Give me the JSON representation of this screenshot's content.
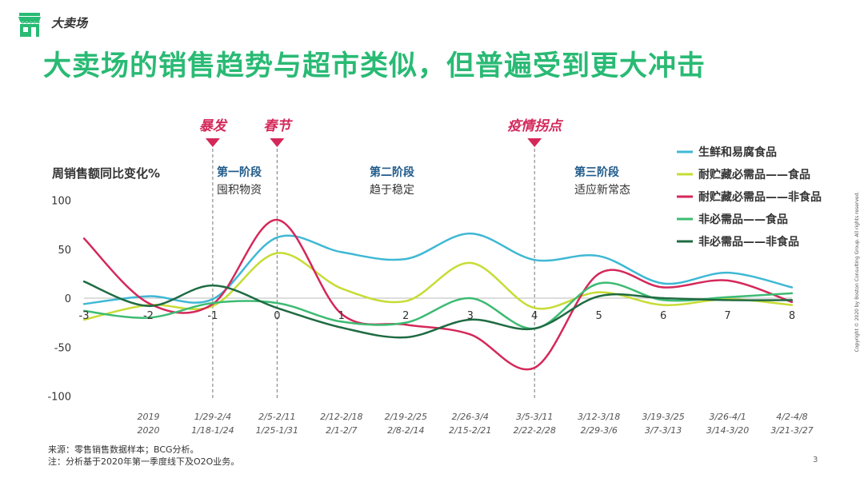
{
  "header": {
    "section_label": "大卖场",
    "title": "大卖场的销售趋势与超市类似，但普遍受到更大冲击"
  },
  "events": [
    {
      "label": "暴发",
      "x": -1
    },
    {
      "label": "春节",
      "x": 0
    },
    {
      "label": "疫情拐点",
      "x": 4
    }
  ],
  "phases": [
    {
      "name": "第一阶段",
      "desc": "囤积物资"
    },
    {
      "name": "第二阶段",
      "desc": "趋于稳定"
    },
    {
      "name": "第三阶段",
      "desc": "适应新常态"
    }
  ],
  "chart_data": {
    "type": "line",
    "ylabel": "周销售额同比变化%",
    "ylim": [
      -100,
      100
    ],
    "yticks": [
      100,
      50,
      0,
      -50,
      -100
    ],
    "x": [
      -3,
      -2,
      -1,
      0,
      1,
      2,
      3,
      4,
      5,
      6,
      7,
      8
    ],
    "xtick_labels": [
      "-3",
      "-2",
      "-1",
      "0",
      "1",
      "2",
      "3",
      "4",
      "5",
      "6",
      "7",
      "8"
    ],
    "date_labels": [
      {
        "y2019": "2019",
        "y2020": "2020"
      },
      {
        "y2019": "1/29-2/4",
        "y2020": "1/18-1/24"
      },
      {
        "y2019": "2/5-2/11",
        "y2020": "1/25-1/31"
      },
      {
        "y2019": "2/12-2/18",
        "y2020": "2/1-2/7"
      },
      {
        "y2019": "2/19-2/25",
        "y2020": "2/8-2/14"
      },
      {
        "y2019": "2/26-3/4",
        "y2020": "2/15-2/21"
      },
      {
        "y2019": "3/5-3/11",
        "y2020": "2/22-2/28"
      },
      {
        "y2019": "3/12-3/18",
        "y2020": "2/29-3/6"
      },
      {
        "y2019": "3/19-3/25",
        "y2020": "3/7-3/13"
      },
      {
        "y2019": "3/26-4/1",
        "y2020": "3/14-3/20"
      },
      {
        "y2019": "4/2-4/8",
        "y2020": "3/21-3/27"
      }
    ],
    "legend_position": "top-right",
    "series": [
      {
        "name": "生鲜和易腐食品",
        "color": "#3fb8d4",
        "values": [
          -6,
          2,
          -1,
          62,
          47,
          40,
          66,
          39,
          43,
          15,
          26,
          11
        ]
      },
      {
        "name": "耐贮藏必需品——食品",
        "color": "#c7dc35",
        "values": [
          -22,
          -7,
          -8,
          46,
          10,
          -3,
          36,
          -10,
          6,
          -7,
          -1,
          -7
        ]
      },
      {
        "name": "耐贮藏必需品——非食品",
        "color": "#d4285a",
        "values": [
          61,
          -5,
          -6,
          80,
          -16,
          -27,
          -37,
          -71,
          25,
          11,
          18,
          -4
        ]
      },
      {
        "name": "非必需品——食品",
        "color": "#3dbb73",
        "values": [
          -13,
          -20,
          -5,
          -5,
          -24,
          -25,
          0,
          -31,
          15,
          -2,
          1,
          5
        ]
      },
      {
        "name": "非必需品——非食品",
        "color": "#1f6b42",
        "values": [
          17,
          -8,
          13,
          -10,
          -30,
          -40,
          -22,
          -31,
          2,
          0,
          -2,
          -2
        ]
      }
    ]
  },
  "footnotes": {
    "source": "来源：零售销售数据样本；BCG分析。",
    "note": "注：分析基于2020年第一季度线下及O2O业务。"
  },
  "page_number": "3",
  "copyright": "Copyright © 2020 by Boston Consulting Group. All rights reserved."
}
